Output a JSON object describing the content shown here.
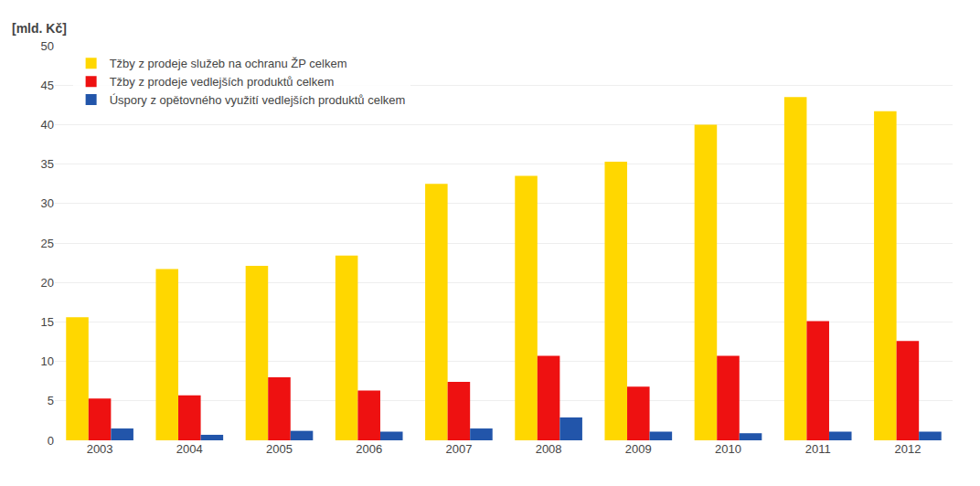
{
  "chart_data": {
    "type": "bar",
    "ylabel": "[mld. Kč]",
    "categories": [
      "2003",
      "2004",
      "2005",
      "2006",
      "2007",
      "2008",
      "2009",
      "2010",
      "2011",
      "2012"
    ],
    "series": [
      {
        "name": "Tžby z prodeje služeb na ochranu ŽP celkem",
        "color": "#FFD700",
        "values": [
          15.6,
          21.7,
          22.1,
          23.4,
          32.5,
          33.5,
          35.3,
          40.0,
          43.5,
          41.7
        ]
      },
      {
        "name": "Tžby z prodeje vedlejších produktů celkem",
        "color": "#EE1111",
        "values": [
          5.3,
          5.7,
          8.0,
          6.3,
          7.4,
          10.7,
          6.8,
          10.7,
          15.1,
          12.6
        ]
      },
      {
        "name": "Úspory z opětovného využití vedlejších produktů celkem",
        "color": "#2255AA",
        "values": [
          1.5,
          0.7,
          1.2,
          1.1,
          1.5,
          2.9,
          1.1,
          0.9,
          1.1,
          1.1
        ]
      }
    ],
    "ylim": [
      0,
      50
    ],
    "yticks": [
      0,
      5,
      10,
      15,
      20,
      25,
      30,
      35,
      40,
      45,
      50
    ],
    "grid": true,
    "legend": "upper left"
  }
}
